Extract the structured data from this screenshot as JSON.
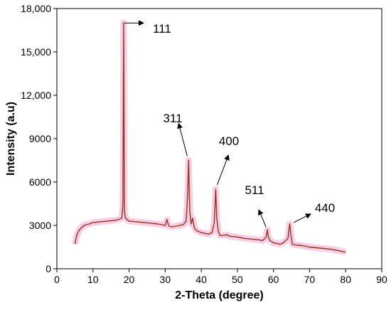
{
  "chart_data": {
    "type": "line",
    "title": "",
    "xlabel": "2-Theta (degree)",
    "ylabel": "Intensity (a.u)",
    "xlim": [
      0,
      90
    ],
    "ylim": [
      0,
      18000
    ],
    "xticks": [
      0,
      10,
      20,
      30,
      40,
      50,
      60,
      70,
      80,
      90
    ],
    "yticks": [
      0,
      3000,
      6000,
      9000,
      12000,
      15000,
      18000
    ],
    "ytick_labels": [
      "0",
      "3000",
      "6000",
      "9000",
      "12,000",
      "15,000",
      "18,000"
    ],
    "grid": false,
    "series": [
      {
        "color": "#8a3a1a",
        "highlight_color": "#e8178c",
        "x": [
          5,
          5.5,
          6,
          7,
          8,
          9,
          10,
          12,
          14,
          16,
          17,
          18,
          18.3,
          18.5,
          18.7,
          19,
          19.5,
          20,
          22,
          24,
          26,
          28,
          30,
          30.5,
          31,
          32,
          33,
          34,
          35,
          35.8,
          36.2,
          36.5,
          36.8,
          37.2,
          37.6,
          38,
          38.4,
          39,
          40,
          41,
          42,
          43,
          43.6,
          44,
          44.3,
          44.7,
          45.2,
          46,
          47,
          48,
          50,
          52,
          54,
          56,
          57,
          58,
          58.3,
          58.6,
          59,
          60,
          61,
          62,
          63,
          64,
          64.5,
          64.8,
          65.2,
          66,
          68,
          70,
          72,
          74,
          76,
          78,
          80
        ],
        "y": [
          1700,
          2300,
          2600,
          2900,
          3050,
          3100,
          3200,
          3250,
          3300,
          3350,
          3400,
          3500,
          4500,
          17000,
          4000,
          3500,
          3400,
          3300,
          3250,
          3200,
          3150,
          3100,
          3000,
          3400,
          2950,
          2900,
          2950,
          3000,
          3050,
          3300,
          5000,
          7500,
          4000,
          3100,
          3500,
          2900,
          2700,
          2600,
          2500,
          2450,
          2400,
          2500,
          3200,
          5500,
          3500,
          2600,
          2300,
          2300,
          2350,
          2250,
          2200,
          2100,
          2050,
          2000,
          1950,
          2200,
          2700,
          2200,
          1950,
          1800,
          1750,
          1700,
          1850,
          2100,
          3100,
          2400,
          1700,
          1650,
          1600,
          1500,
          1450,
          1400,
          1350,
          1250,
          1150
        ]
      }
    ],
    "annotations": [
      {
        "text": "111",
        "x": 18.5,
        "y": 17000
      },
      {
        "text": "311",
        "x": 36.5,
        "y": 7500
      },
      {
        "text": "400",
        "x": 44,
        "y": 5500
      },
      {
        "text": "511",
        "x": 58.3,
        "y": 2700
      },
      {
        "text": "440",
        "x": 64.8,
        "y": 3100
      }
    ]
  }
}
